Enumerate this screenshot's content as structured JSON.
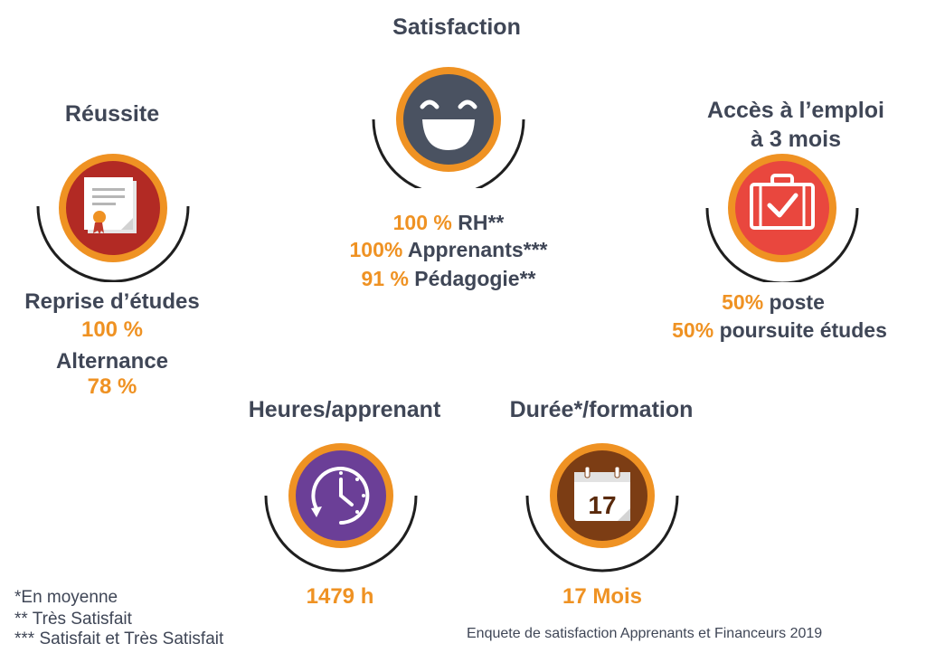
{
  "reussite": {
    "title": "Réussite",
    "reprise_label": "Reprise d’études",
    "reprise_value": "100 %",
    "alternance_label": "Alternance",
    "alternance_value": "78 %",
    "icon": "certificate-icon",
    "color": "#b22a24"
  },
  "satisfaction": {
    "title": "Satisfaction",
    "icon": "smiley-icon",
    "color": "#4a5261",
    "lines": [
      {
        "value": "100 %",
        "label": "RH**"
      },
      {
        "value": "100%",
        "label": "Apprenants***"
      },
      {
        "value": "91 %",
        "label": "Pédagogie**"
      }
    ]
  },
  "emploi": {
    "title_line1": "Accès à l’emploi",
    "title_line2": "à 3 mois",
    "icon": "briefcase-check-icon",
    "color": "#e9473e",
    "lines": [
      {
        "value": "50%",
        "label": "poste"
      },
      {
        "value": "50%",
        "label": "poursuite études"
      }
    ]
  },
  "heures": {
    "title": "Heures/apprenant",
    "value": "1479 h",
    "icon": "clock-icon",
    "color": "#6b3f97"
  },
  "duree": {
    "title": "Durée*/formation",
    "value": "17 Mois",
    "icon": "calendar-icon",
    "calendar_day": "17",
    "color": "#7c3d14"
  },
  "footnotes": [
    "*En moyenne",
    "** Très Satisfait",
    "*** Satisfait et Très Satisfait"
  ],
  "source": "Enquete de satisfaction Apprenants et Financeurs 2019",
  "colors": {
    "orange": "#ef9223",
    "dark": "#3f4656"
  }
}
